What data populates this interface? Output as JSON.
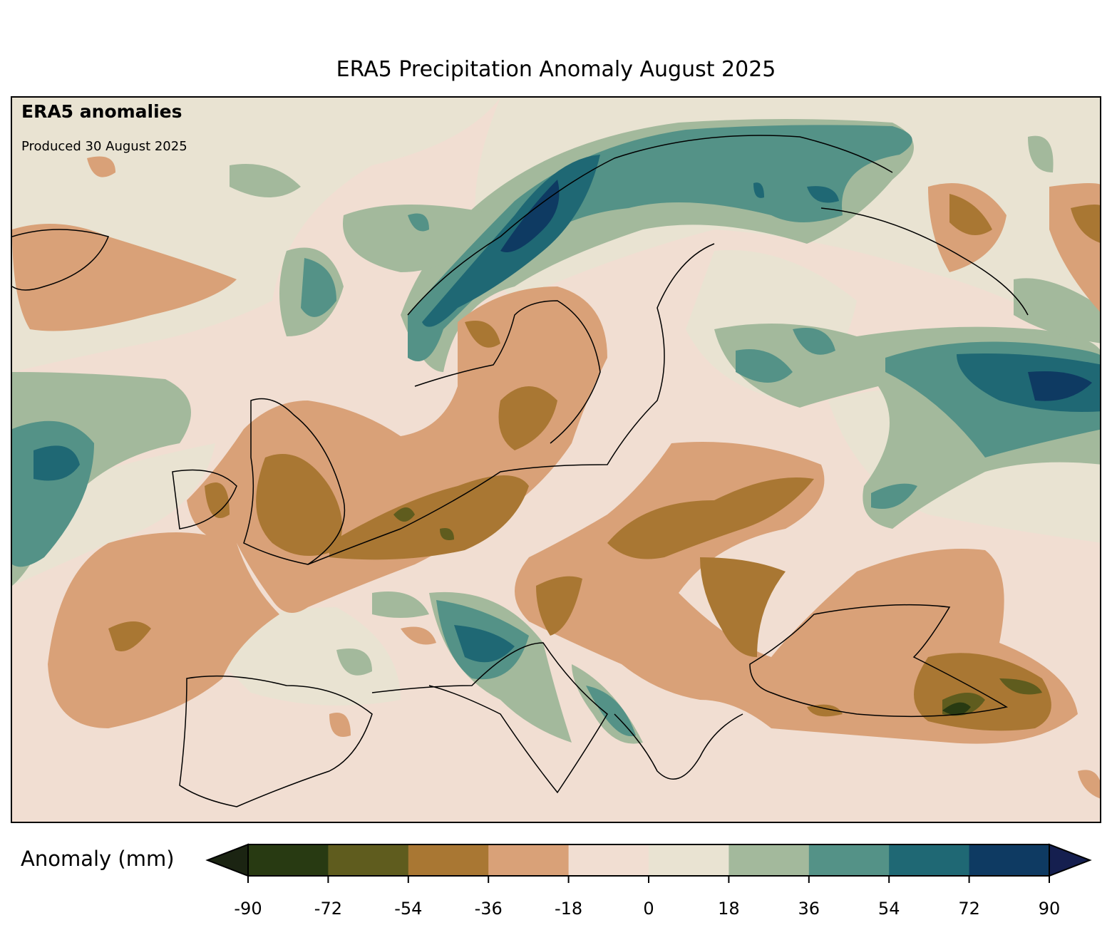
{
  "title": "ERA5 Precipitation Anomaly August 2025",
  "annotations": {
    "heading": "ERA5 anomalies",
    "produced": "Produced 30 August 2025"
  },
  "colorbar": {
    "label": "Anomaly (mm)",
    "ticks": [
      "-90",
      "-72",
      "-54",
      "-36",
      "-18",
      "0",
      "18",
      "36",
      "54",
      "72",
      "90"
    ],
    "levels": [
      -90,
      -72,
      -54,
      -36,
      -18,
      0,
      18,
      36,
      54,
      72,
      90
    ],
    "colors": [
      "#283a12",
      "#5f5c1e",
      "#a97733",
      "#d9a178",
      "#f1ded2",
      "#e9e3d2",
      "#a3b99c",
      "#549287",
      "#1f6874",
      "#0e3a62"
    ],
    "under_color": "#1b2412",
    "over_color": "#151f4f",
    "extend": "both"
  }
}
